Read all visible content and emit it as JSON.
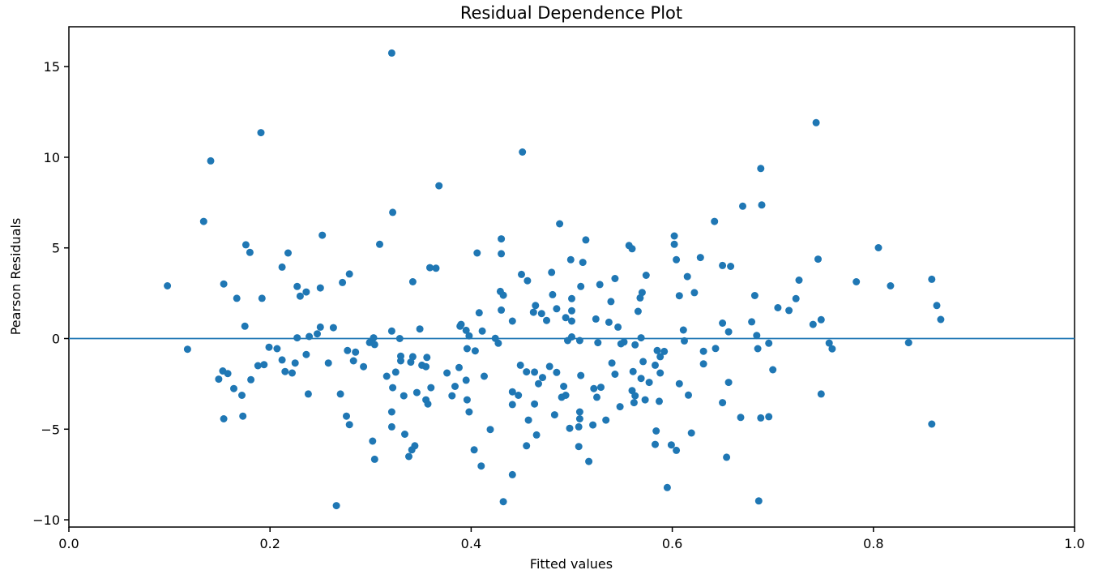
{
  "chart_data": {
    "type": "scatter",
    "title": "Residual Dependence Plot",
    "xlabel": "Fitted values",
    "ylabel": "Pearson Residuals",
    "xlim": [
      0.0,
      1.0
    ],
    "ylim": [
      -10.4,
      17.2
    ],
    "xticks": [
      0.0,
      0.2,
      0.4,
      0.6,
      0.8,
      1.0
    ],
    "xtick_labels": [
      "0.0",
      "0.2",
      "0.4",
      "0.6",
      "0.8",
      "1.0"
    ],
    "yticks": [
      -10,
      -5,
      0,
      5,
      10,
      15
    ],
    "ytick_labels": [
      "−10",
      "−5",
      "0",
      "5",
      "10",
      "15"
    ],
    "grid": false,
    "legend": "none",
    "marker_color": "#1f77b4",
    "axis_color": "#000000",
    "zero_line": {
      "y": 0,
      "color": "#1f77b4"
    },
    "points": [
      [
        0.191,
        11.36
      ],
      [
        0.141,
        9.8
      ],
      [
        0.321,
        15.75
      ],
      [
        0.451,
        10.29
      ],
      [
        0.368,
        8.43
      ],
      [
        0.743,
        11.91
      ],
      [
        0.688,
        9.38
      ],
      [
        0.134,
        6.46
      ],
      [
        0.176,
        5.17
      ],
      [
        0.18,
        4.75
      ],
      [
        0.218,
        4.72
      ],
      [
        0.212,
        3.94
      ],
      [
        0.098,
        2.91
      ],
      [
        0.154,
        3.01
      ],
      [
        0.167,
        2.22
      ],
      [
        0.192,
        2.22
      ],
      [
        0.227,
        2.87
      ],
      [
        0.236,
        2.57
      ],
      [
        0.23,
        2.34
      ],
      [
        0.175,
        0.68
      ],
      [
        0.227,
        0.04
      ],
      [
        0.239,
        0.11
      ],
      [
        0.247,
        0.26
      ],
      [
        0.118,
        -0.59
      ],
      [
        0.199,
        -0.48
      ],
      [
        0.207,
        -0.56
      ],
      [
        0.236,
        -0.88
      ],
      [
        0.212,
        -1.18
      ],
      [
        0.322,
        6.96
      ],
      [
        0.488,
        6.33
      ],
      [
        0.309,
        5.2
      ],
      [
        0.43,
        5.5
      ],
      [
        0.406,
        4.72
      ],
      [
        0.43,
        4.68
      ],
      [
        0.499,
        4.35
      ],
      [
        0.359,
        3.91
      ],
      [
        0.365,
        3.88
      ],
      [
        0.279,
        3.56
      ],
      [
        0.342,
        3.13
      ],
      [
        0.272,
        3.09
      ],
      [
        0.25,
        2.79
      ],
      [
        0.252,
        5.7
      ],
      [
        0.25,
        0.63
      ],
      [
        0.263,
        0.6
      ],
      [
        0.303,
        0.04
      ],
      [
        0.299,
        -0.22
      ],
      [
        0.304,
        -0.33
      ],
      [
        0.321,
        0.41
      ],
      [
        0.329,
        0.0
      ],
      [
        0.349,
        0.53
      ],
      [
        0.277,
        -0.66
      ],
      [
        0.285,
        -0.75
      ],
      [
        0.342,
        -1.0
      ],
      [
        0.33,
        -0.97
      ],
      [
        0.356,
        -1.04
      ],
      [
        0.39,
        0.78
      ],
      [
        0.389,
        0.68
      ],
      [
        0.395,
        0.45
      ],
      [
        0.398,
        0.15
      ],
      [
        0.396,
        -0.56
      ],
      [
        0.404,
        -0.68
      ],
      [
        0.408,
        1.42
      ],
      [
        0.411,
        0.41
      ],
      [
        0.424,
        0.01
      ],
      [
        0.427,
        -0.26
      ],
      [
        0.429,
        2.6
      ],
      [
        0.432,
        2.39
      ],
      [
        0.43,
        1.57
      ],
      [
        0.441,
        0.96
      ],
      [
        0.45,
        3.54
      ],
      [
        0.456,
        3.19
      ],
      [
        0.464,
        1.82
      ],
      [
        0.462,
        1.45
      ],
      [
        0.47,
        1.38
      ],
      [
        0.475,
        1.0
      ],
      [
        0.48,
        3.65
      ],
      [
        0.481,
        2.42
      ],
      [
        0.485,
        1.64
      ],
      [
        0.494,
        1.15
      ],
      [
        0.496,
        -0.11
      ],
      [
        0.67,
        7.3
      ],
      [
        0.689,
        7.37
      ],
      [
        0.642,
        6.46
      ],
      [
        0.514,
        5.44
      ],
      [
        0.602,
        5.66
      ],
      [
        0.602,
        5.2
      ],
      [
        0.557,
        5.13
      ],
      [
        0.56,
        4.95
      ],
      [
        0.511,
        4.2
      ],
      [
        0.604,
        4.35
      ],
      [
        0.628,
        4.47
      ],
      [
        0.65,
        4.03
      ],
      [
        0.658,
        3.98
      ],
      [
        0.745,
        4.38
      ],
      [
        0.543,
        3.31
      ],
      [
        0.574,
        3.49
      ],
      [
        0.615,
        3.42
      ],
      [
        0.509,
        2.87
      ],
      [
        0.528,
        2.98
      ],
      [
        0.726,
        3.22
      ],
      [
        0.5,
        2.2
      ],
      [
        0.539,
        2.04
      ],
      [
        0.57,
        2.54
      ],
      [
        0.568,
        2.24
      ],
      [
        0.607,
        2.36
      ],
      [
        0.622,
        2.53
      ],
      [
        0.682,
        2.37
      ],
      [
        0.723,
        2.2
      ],
      [
        0.716,
        1.55
      ],
      [
        0.5,
        1.53
      ],
      [
        0.5,
        0.96
      ],
      [
        0.5,
        0.09
      ],
      [
        0.524,
        1.08
      ],
      [
        0.537,
        0.9
      ],
      [
        0.546,
        0.63
      ],
      [
        0.566,
        1.5
      ],
      [
        0.569,
        0.04
      ],
      [
        0.552,
        -0.19
      ],
      [
        0.549,
        -0.29
      ],
      [
        0.526,
        -0.23
      ],
      [
        0.508,
        -0.11
      ],
      [
        0.563,
        -0.35
      ],
      [
        0.585,
        -0.66
      ],
      [
        0.592,
        -0.71
      ],
      [
        0.588,
        -1.0
      ],
      [
        0.611,
        0.47
      ],
      [
        0.612,
        -0.13
      ],
      [
        0.631,
        -0.7
      ],
      [
        0.643,
        -0.55
      ],
      [
        0.65,
        0.85
      ],
      [
        0.656,
        0.37
      ],
      [
        0.679,
        0.92
      ],
      [
        0.684,
        0.17
      ],
      [
        0.685,
        -0.56
      ],
      [
        0.696,
        -0.26
      ],
      [
        0.705,
        1.7
      ],
      [
        0.74,
        0.78
      ],
      [
        0.805,
        5.01
      ],
      [
        0.783,
        3.13
      ],
      [
        0.817,
        2.91
      ],
      [
        0.858,
        3.27
      ],
      [
        0.863,
        1.82
      ],
      [
        0.867,
        1.05
      ],
      [
        0.748,
        1.04
      ],
      [
        0.756,
        -0.25
      ],
      [
        0.759,
        -0.57
      ],
      [
        0.835,
        -0.23
      ],
      [
        0.149,
        -2.24
      ],
      [
        0.153,
        -1.79
      ],
      [
        0.158,
        -1.93
      ],
      [
        0.188,
        -1.5
      ],
      [
        0.194,
        -1.44
      ],
      [
        0.215,
        -1.82
      ],
      [
        0.222,
        -1.9
      ],
      [
        0.225,
        -1.35
      ],
      [
        0.181,
        -2.27
      ],
      [
        0.164,
        -2.76
      ],
      [
        0.172,
        -3.13
      ],
      [
        0.238,
        -3.06
      ],
      [
        0.154,
        -4.43
      ],
      [
        0.173,
        -4.28
      ],
      [
        0.258,
        -1.35
      ],
      [
        0.283,
        -1.23
      ],
      [
        0.293,
        -1.55
      ],
      [
        0.33,
        -1.23
      ],
      [
        0.34,
        -1.3
      ],
      [
        0.351,
        -1.47
      ],
      [
        0.355,
        -1.55
      ],
      [
        0.449,
        -1.47
      ],
      [
        0.455,
        -1.84
      ],
      [
        0.478,
        -1.54
      ],
      [
        0.316,
        -2.08
      ],
      [
        0.325,
        -1.85
      ],
      [
        0.376,
        -1.9
      ],
      [
        0.388,
        -1.6
      ],
      [
        0.395,
        -2.3
      ],
      [
        0.413,
        -2.08
      ],
      [
        0.463,
        -1.85
      ],
      [
        0.467,
        -2.49
      ],
      [
        0.471,
        -2.15
      ],
      [
        0.485,
        -1.87
      ],
      [
        0.492,
        -2.64
      ],
      [
        0.27,
        -3.06
      ],
      [
        0.322,
        -2.71
      ],
      [
        0.333,
        -3.16
      ],
      [
        0.346,
        -2.98
      ],
      [
        0.355,
        -3.38
      ],
      [
        0.357,
        -3.61
      ],
      [
        0.36,
        -2.71
      ],
      [
        0.381,
        -3.16
      ],
      [
        0.384,
        -2.64
      ],
      [
        0.396,
        -3.38
      ],
      [
        0.398,
        -4.05
      ],
      [
        0.441,
        -2.94
      ],
      [
        0.447,
        -3.13
      ],
      [
        0.441,
        -3.64
      ],
      [
        0.463,
        -3.61
      ],
      [
        0.49,
        -3.24
      ],
      [
        0.494,
        -3.13
      ],
      [
        0.321,
        -4.05
      ],
      [
        0.276,
        -4.28
      ],
      [
        0.279,
        -4.75
      ],
      [
        0.321,
        -4.87
      ],
      [
        0.419,
        -5.02
      ],
      [
        0.457,
        -4.5
      ],
      [
        0.483,
        -4.21
      ],
      [
        0.498,
        -4.95
      ],
      [
        0.302,
        -5.66
      ],
      [
        0.334,
        -5.28
      ],
      [
        0.344,
        -5.92
      ],
      [
        0.341,
        -6.14
      ],
      [
        0.338,
        -6.51
      ],
      [
        0.304,
        -6.66
      ],
      [
        0.403,
        -6.14
      ],
      [
        0.41,
        -7.03
      ],
      [
        0.465,
        -5.32
      ],
      [
        0.455,
        -5.92
      ],
      [
        0.441,
        -7.51
      ],
      [
        0.266,
        -9.22
      ],
      [
        0.432,
        -9.0
      ],
      [
        0.54,
        -1.35
      ],
      [
        0.571,
        -1.27
      ],
      [
        0.583,
        -1.47
      ],
      [
        0.631,
        -1.4
      ],
      [
        0.7,
        -1.72
      ],
      [
        0.509,
        -2.04
      ],
      [
        0.543,
        -1.97
      ],
      [
        0.561,
        -1.82
      ],
      [
        0.569,
        -2.2
      ],
      [
        0.577,
        -2.42
      ],
      [
        0.588,
        -1.9
      ],
      [
        0.522,
        -2.76
      ],
      [
        0.529,
        -2.69
      ],
      [
        0.525,
        -3.24
      ],
      [
        0.56,
        -2.87
      ],
      [
        0.563,
        -3.16
      ],
      [
        0.562,
        -3.54
      ],
      [
        0.548,
        -3.76
      ],
      [
        0.573,
        -3.38
      ],
      [
        0.587,
        -3.46
      ],
      [
        0.607,
        -2.49
      ],
      [
        0.616,
        -3.12
      ],
      [
        0.65,
        -3.54
      ],
      [
        0.656,
        -2.42
      ],
      [
        0.668,
        -4.35
      ],
      [
        0.688,
        -4.38
      ],
      [
        0.696,
        -4.31
      ],
      [
        0.748,
        -3.06
      ],
      [
        0.508,
        -4.05
      ],
      [
        0.508,
        -4.43
      ],
      [
        0.507,
        -4.87
      ],
      [
        0.521,
        -4.77
      ],
      [
        0.534,
        -4.5
      ],
      [
        0.584,
        -5.1
      ],
      [
        0.583,
        -5.84
      ],
      [
        0.599,
        -5.87
      ],
      [
        0.604,
        -6.17
      ],
      [
        0.619,
        -5.21
      ],
      [
        0.507,
        -5.96
      ],
      [
        0.517,
        -6.78
      ],
      [
        0.654,
        -6.55
      ],
      [
        0.595,
        -8.22
      ],
      [
        0.686,
        -8.96
      ],
      [
        0.858,
        -4.72
      ]
    ]
  }
}
